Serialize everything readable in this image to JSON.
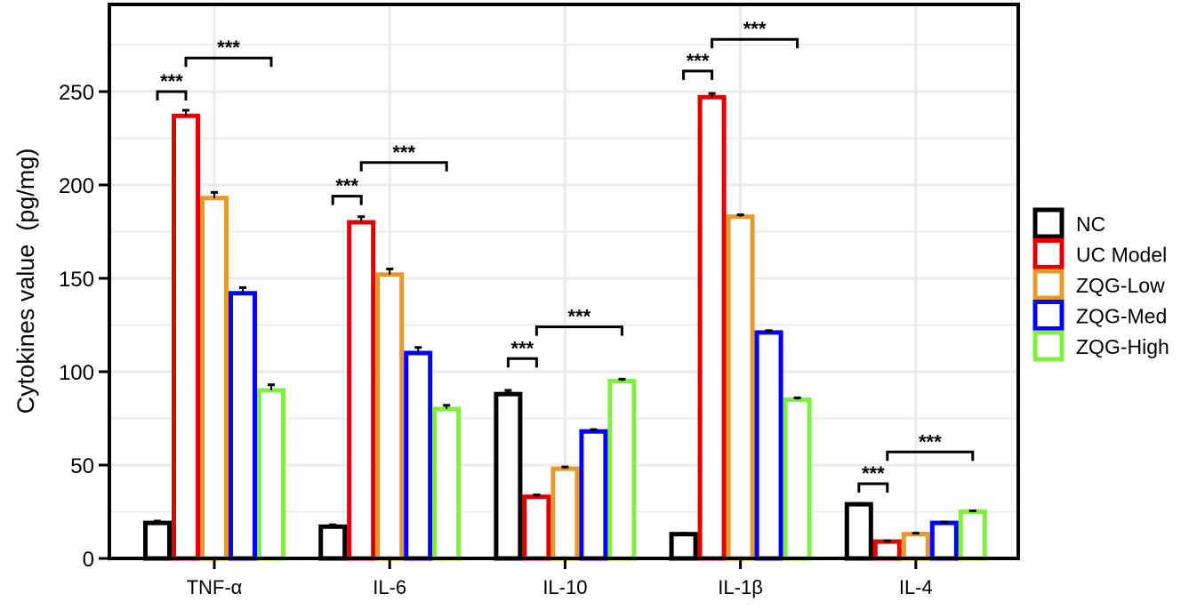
{
  "chart_data": {
    "type": "bar",
    "title": "",
    "xlabel": "",
    "ylabel": "Cytokines value  (pg/mg)",
    "ylim": [
      0,
      296
    ],
    "yticks": [
      0,
      50,
      100,
      150,
      200,
      250
    ],
    "grid": true,
    "legend_position": "right",
    "categories": [
      "TNF-α",
      "IL-6",
      "IL-10",
      "IL-1β",
      "IL-4"
    ],
    "series": [
      {
        "name": "NC",
        "color": "#000000",
        "values": [
          19,
          17,
          88,
          13,
          29
        ],
        "errors": [
          1,
          1,
          2,
          0.5,
          0.5
        ]
      },
      {
        "name": "UC Model",
        "color": "#e00000",
        "values": [
          237,
          180,
          33,
          247,
          9
        ],
        "errors": [
          3,
          3,
          1,
          2,
          0.5
        ]
      },
      {
        "name": "ZQG-Low",
        "color": "#e8992c",
        "values": [
          193,
          152,
          48,
          183,
          13
        ],
        "errors": [
          3,
          3,
          1,
          1,
          0.5
        ]
      },
      {
        "name": "ZQG-Med",
        "color": "#0000ff",
        "values": [
          142,
          110,
          68,
          121,
          19
        ],
        "errors": [
          3,
          3,
          1,
          1,
          0.5
        ]
      },
      {
        "name": "ZQG-High",
        "color": "#80f040",
        "values": [
          90,
          80,
          95,
          85,
          25
        ],
        "errors": [
          3,
          2,
          1,
          1,
          0.5
        ]
      }
    ],
    "annotations": [
      {
        "category": "TNF-α",
        "from": "NC",
        "to": "UC Model",
        "label": "***",
        "y": 250
      },
      {
        "category": "TNF-α",
        "from": "UC Model",
        "to": "ZQG-High",
        "label": "***",
        "y": 268
      },
      {
        "category": "IL-6",
        "from": "NC",
        "to": "UC Model",
        "label": "***",
        "y": 194
      },
      {
        "category": "IL-6",
        "from": "UC Model",
        "to": "ZQG-High",
        "label": "***",
        "y": 212
      },
      {
        "category": "IL-10",
        "from": "NC",
        "to": "UC Model",
        "label": "***",
        "y": 107
      },
      {
        "category": "IL-10",
        "from": "UC Model",
        "to": "ZQG-High",
        "label": "***",
        "y": 124
      },
      {
        "category": "IL-1β",
        "from": "NC",
        "to": "UC Model",
        "label": "***",
        "y": 261
      },
      {
        "category": "IL-1β",
        "from": "UC Model",
        "to": "ZQG-High",
        "label": "***",
        "y": 278
      },
      {
        "category": "IL-4",
        "from": "NC",
        "to": "UC Model",
        "label": "***",
        "y": 40
      },
      {
        "category": "IL-4",
        "from": "UC Model",
        "to": "ZQG-High",
        "label": "***",
        "y": 57
      }
    ]
  },
  "legend": {
    "items": [
      {
        "label": "NC",
        "color": "#000000"
      },
      {
        "label": "UC Model",
        "color": "#e00000"
      },
      {
        "label": "ZQG-Low",
        "color": "#e8992c"
      },
      {
        "label": "ZQG-Med",
        "color": "#0000ff"
      },
      {
        "label": "ZQG-High",
        "color": "#80f040"
      }
    ]
  }
}
